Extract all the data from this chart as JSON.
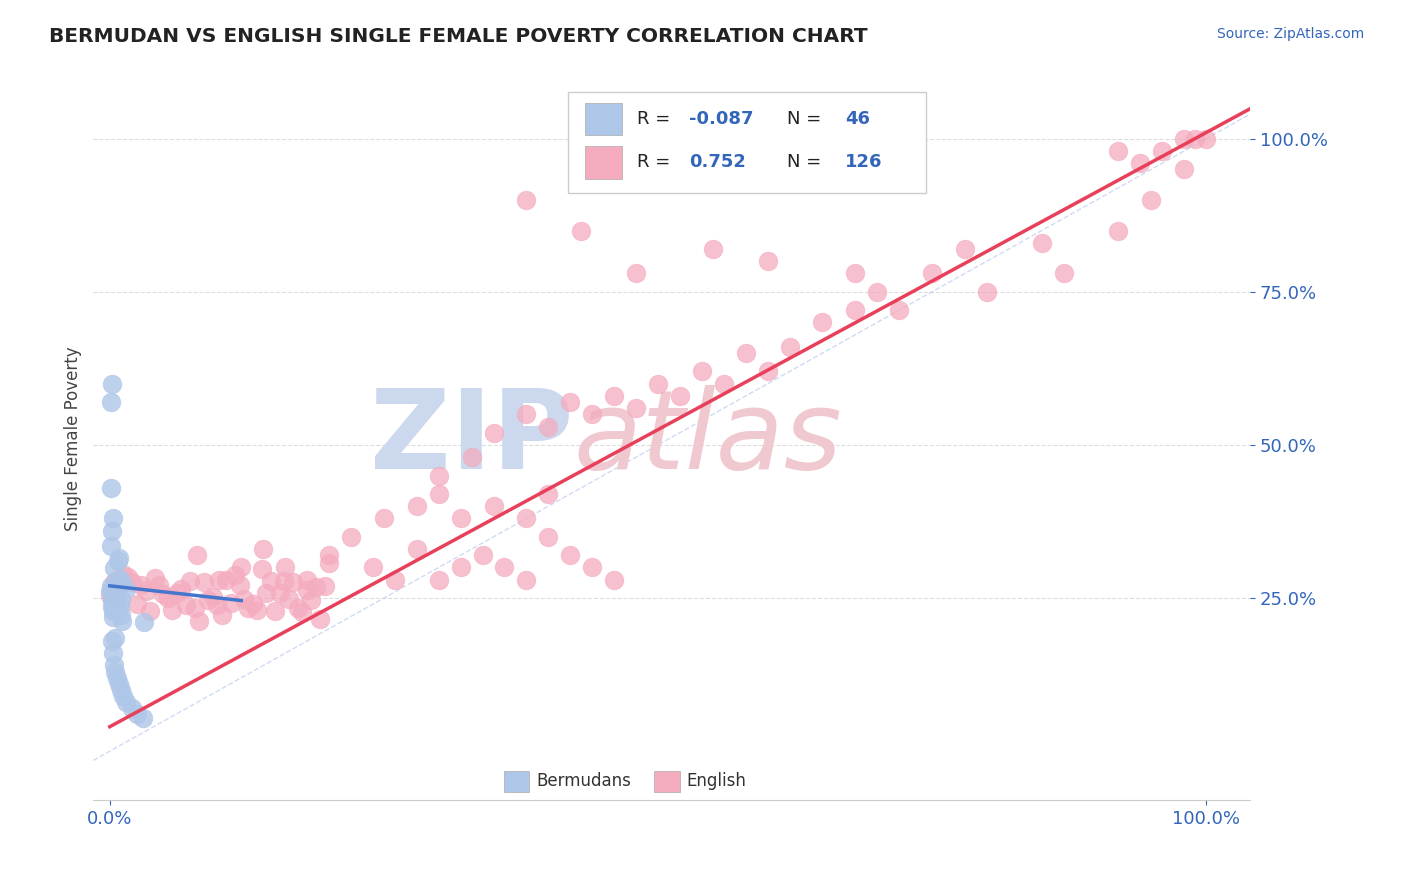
{
  "title": "BERMUDAN VS ENGLISH SINGLE FEMALE POVERTY CORRELATION CHART",
  "source": "Source: ZipAtlas.com",
  "ylabel": "Single Female Poverty",
  "bermudan_color": "#aec6e8",
  "english_color": "#f4abbe",
  "bermudan_line_color": "#4477cc",
  "english_line_color": "#e8405a",
  "diagonal_color": "#bbbbdd",
  "background_color": "#ffffff",
  "title_color": "#222222",
  "axis_color": "#3366bb",
  "R_bermudan": -0.087,
  "N_bermudan": 46,
  "R_english": 0.752,
  "N_english": 126,
  "watermark_zip_color": "#ccd8ee",
  "watermark_atlas_color": "#f0c8d0"
}
